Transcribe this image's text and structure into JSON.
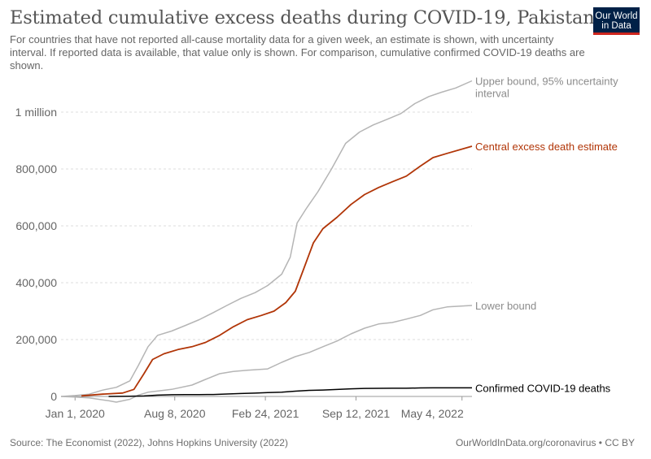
{
  "header": {
    "title": "Estimated cumulative excess deaths during COVID-19, Pakistan",
    "subtitle": "For countries that have not reported all-cause mortality data for a given week, an estimate is shown, with uncertainty interval. If reported data is available, that value only is shown. For comparison, cumulative confirmed COVID-19 deaths are shown."
  },
  "logo": {
    "line1": "Our World",
    "line2": "in Data"
  },
  "footer": {
    "source": "Source: The Economist (2022), Johns Hopkins University (2022)",
    "license": "OurWorldInData.org/coronavirus • CC BY"
  },
  "colors": {
    "upper": "#b5b5b5",
    "central": "#b13507",
    "lower": "#b5b5b5",
    "confirmed": "#000000",
    "grid": "#dddddd",
    "axis_text": "#666666",
    "label_gray": "#8c8c8c"
  },
  "chart_data": {
    "type": "line",
    "title": "Estimated cumulative excess deaths during COVID-19, Pakistan",
    "x_tick_labels": [
      "Jan 1, 2020",
      "Aug 8, 2020",
      "Feb 24, 2021",
      "Sep 12, 2021",
      "May 4, 2022"
    ],
    "x_ticks": [
      "2020-01-01",
      "2020-08-08",
      "2021-02-24",
      "2021-09-12",
      "2022-05-04"
    ],
    "xlim": [
      "2019-12-01",
      "2022-05-26"
    ],
    "ylim": [
      0,
      1100000
    ],
    "y_ticks": [
      0,
      200000,
      400000,
      600000,
      800000,
      1000000
    ],
    "y_tick_labels": [
      "0",
      "200,000",
      "400,000",
      "600,000",
      "800,000",
      "1 million"
    ],
    "grid": "horizontal dashed",
    "series": [
      {
        "name": "Upper bound, 95% uncertainty interval",
        "label": [
          "Upper bound, 95% uncertainty",
          "interval"
        ],
        "color": "#b5b5b5",
        "points": [
          [
            "2019-12-01",
            0
          ],
          [
            "2020-01-01",
            3000
          ],
          [
            "2020-02-01",
            8000
          ],
          [
            "2020-03-01",
            22000
          ],
          [
            "2020-04-01",
            32000
          ],
          [
            "2020-05-01",
            55000
          ],
          [
            "2020-05-20",
            110000
          ],
          [
            "2020-06-10",
            175000
          ],
          [
            "2020-07-01",
            215000
          ],
          [
            "2020-08-01",
            230000
          ],
          [
            "2020-09-01",
            250000
          ],
          [
            "2020-10-01",
            270000
          ],
          [
            "2020-11-01",
            295000
          ],
          [
            "2020-12-01",
            320000
          ],
          [
            "2021-01-01",
            345000
          ],
          [
            "2021-02-01",
            365000
          ],
          [
            "2021-03-01",
            390000
          ],
          [
            "2021-04-01",
            430000
          ],
          [
            "2021-04-20",
            490000
          ],
          [
            "2021-05-05",
            610000
          ],
          [
            "2021-05-25",
            660000
          ],
          [
            "2021-06-20",
            720000
          ],
          [
            "2021-07-20",
            800000
          ],
          [
            "2021-08-20",
            890000
          ],
          [
            "2021-09-20",
            930000
          ],
          [
            "2021-10-20",
            955000
          ],
          [
            "2021-11-20",
            975000
          ],
          [
            "2021-12-20",
            995000
          ],
          [
            "2022-01-20",
            1030000
          ],
          [
            "2022-02-20",
            1055000
          ],
          [
            "2022-03-20",
            1070000
          ],
          [
            "2022-04-20",
            1085000
          ],
          [
            "2022-05-26",
            1110000
          ]
        ]
      },
      {
        "name": "Central excess death estimate",
        "label": [
          "Central excess death estimate"
        ],
        "color": "#b13507",
        "points": [
          [
            "2020-01-15",
            2000
          ],
          [
            "2020-03-01",
            8000
          ],
          [
            "2020-04-15",
            12000
          ],
          [
            "2020-05-10",
            25000
          ],
          [
            "2020-06-01",
            80000
          ],
          [
            "2020-06-20",
            130000
          ],
          [
            "2020-07-15",
            150000
          ],
          [
            "2020-08-15",
            165000
          ],
          [
            "2020-09-15",
            175000
          ],
          [
            "2020-10-15",
            190000
          ],
          [
            "2020-11-15",
            215000
          ],
          [
            "2020-12-15",
            245000
          ],
          [
            "2021-01-15",
            270000
          ],
          [
            "2021-02-15",
            285000
          ],
          [
            "2021-03-15",
            300000
          ],
          [
            "2021-04-10",
            330000
          ],
          [
            "2021-05-01",
            370000
          ],
          [
            "2021-05-20",
            450000
          ],
          [
            "2021-06-10",
            540000
          ],
          [
            "2021-07-01",
            590000
          ],
          [
            "2021-08-01",
            630000
          ],
          [
            "2021-09-01",
            675000
          ],
          [
            "2021-10-01",
            710000
          ],
          [
            "2021-11-01",
            735000
          ],
          [
            "2021-12-01",
            755000
          ],
          [
            "2022-01-01",
            775000
          ],
          [
            "2022-02-01",
            810000
          ],
          [
            "2022-03-01",
            840000
          ],
          [
            "2022-04-01",
            855000
          ],
          [
            "2022-05-26",
            880000
          ]
        ]
      },
      {
        "name": "Lower bound",
        "label": [
          "Lower bound"
        ],
        "color": "#b5b5b5",
        "points": [
          [
            "2019-12-01",
            0
          ],
          [
            "2020-01-01",
            -2000
          ],
          [
            "2020-02-01",
            -5000
          ],
          [
            "2020-03-15",
            -15000
          ],
          [
            "2020-04-01",
            -20000
          ],
          [
            "2020-05-01",
            -10000
          ],
          [
            "2020-05-20",
            5000
          ],
          [
            "2020-06-10",
            15000
          ],
          [
            "2020-08-01",
            25000
          ],
          [
            "2020-09-15",
            40000
          ],
          [
            "2020-10-15",
            60000
          ],
          [
            "2020-11-15",
            80000
          ],
          [
            "2020-12-15",
            88000
          ],
          [
            "2021-01-15",
            92000
          ],
          [
            "2021-03-01",
            97000
          ],
          [
            "2021-04-01",
            120000
          ],
          [
            "2021-05-01",
            140000
          ],
          [
            "2021-06-01",
            155000
          ],
          [
            "2021-07-01",
            175000
          ],
          [
            "2021-08-01",
            195000
          ],
          [
            "2021-09-01",
            220000
          ],
          [
            "2021-10-01",
            240000
          ],
          [
            "2021-11-01",
            255000
          ],
          [
            "2021-12-01",
            260000
          ],
          [
            "2022-01-01",
            272000
          ],
          [
            "2022-02-01",
            285000
          ],
          [
            "2022-03-01",
            305000
          ],
          [
            "2022-04-01",
            315000
          ],
          [
            "2022-05-26",
            320000
          ]
        ]
      },
      {
        "name": "Confirmed COVID-19 deaths",
        "label": [
          "Confirmed COVID-19 deaths"
        ],
        "color": "#000000",
        "points": [
          [
            "2020-03-15",
            0
          ],
          [
            "2020-05-01",
            500
          ],
          [
            "2020-06-01",
            1800
          ],
          [
            "2020-07-01",
            4500
          ],
          [
            "2020-08-01",
            6000
          ],
          [
            "2020-09-01",
            6400
          ],
          [
            "2020-10-01",
            6700
          ],
          [
            "2020-11-01",
            7000
          ],
          [
            "2020-12-01",
            8500
          ],
          [
            "2021-01-01",
            10200
          ],
          [
            "2021-02-01",
            11800
          ],
          [
            "2021-03-01",
            13500
          ],
          [
            "2021-04-01",
            15000
          ],
          [
            "2021-05-01",
            18500
          ],
          [
            "2021-06-01",
            21500
          ],
          [
            "2021-07-01",
            22500
          ],
          [
            "2021-08-01",
            24500
          ],
          [
            "2021-09-01",
            26800
          ],
          [
            "2021-10-01",
            28200
          ],
          [
            "2021-11-01",
            28700
          ],
          [
            "2021-12-01",
            28900
          ],
          [
            "2022-01-01",
            29000
          ],
          [
            "2022-02-01",
            30000
          ],
          [
            "2022-03-01",
            30300
          ],
          [
            "2022-05-26",
            30400
          ]
        ]
      }
    ]
  }
}
